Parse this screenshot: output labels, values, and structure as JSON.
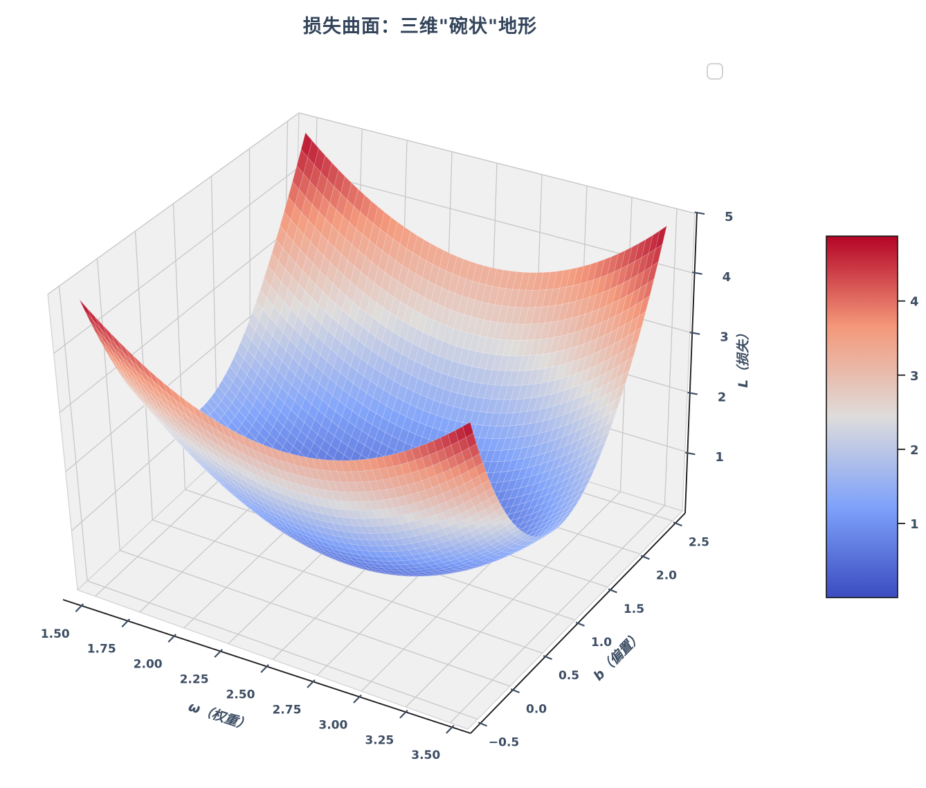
{
  "chart_data": {
    "type": "surface",
    "title": "损失曲面：三维\"碗状\"地形",
    "xlabel": "ω（权重）",
    "ylabel": "b（偏置）",
    "zlabel": "L（损失）",
    "x_tick_labels": [
      "1.50",
      "1.75",
      "2.00",
      "2.25",
      "2.50",
      "2.75",
      "3.00",
      "3.25",
      "3.50"
    ],
    "x_tick_values": [
      1.5,
      1.75,
      2.0,
      2.25,
      2.5,
      2.75,
      3.0,
      3.25,
      3.5
    ],
    "y_tick_labels": [
      "−0.5",
      "0.0",
      "0.5",
      "1.0",
      "1.5",
      "2.0",
      "2.5"
    ],
    "y_tick_values": [
      -0.5,
      0.0,
      0.5,
      1.0,
      1.5,
      2.0,
      2.5
    ],
    "z_tick_labels": [
      "1",
      "2",
      "3",
      "4",
      "5"
    ],
    "z_tick_values": [
      1,
      2,
      3,
      4,
      5
    ],
    "axes_limits": {
      "x": [
        1.4,
        3.6
      ],
      "y": [
        -0.65,
        2.65
      ],
      "z": [
        0,
        5
      ]
    },
    "surface": {
      "formula": "L = 1.5*((w-2.5)^2 + (b-1)^2)",
      "coef": 1.5,
      "w_center": 2.5,
      "b_center": 1.0,
      "w_range": [
        1.5,
        3.5
      ],
      "b_range": [
        -0.5,
        2.5
      ],
      "z_min": 0,
      "z_max": 4.875
    },
    "colormap": "coolwarm",
    "grid": true,
    "legend": {
      "visible": true,
      "items": []
    },
    "colorbar": {
      "tick_labels": [
        "1",
        "2",
        "3",
        "4"
      ],
      "tick_values": [
        1,
        2,
        3,
        4
      ],
      "vmin": 0,
      "vmax": 4.875
    }
  },
  "colors": {
    "title": "#33445a",
    "tick_label": "#3d4d63",
    "axis_spine": "#1c1c1c",
    "grid_line": "#c7c7c7",
    "pane_fill": "#f0f0f1",
    "pane_edge": "#d0d0d0",
    "legend_border": "#d3d3d3",
    "colormap_stops": [
      "#3b4cc0",
      "#7ea1fa",
      "#dedcdb",
      "#f4987a",
      "#b40426"
    ]
  }
}
